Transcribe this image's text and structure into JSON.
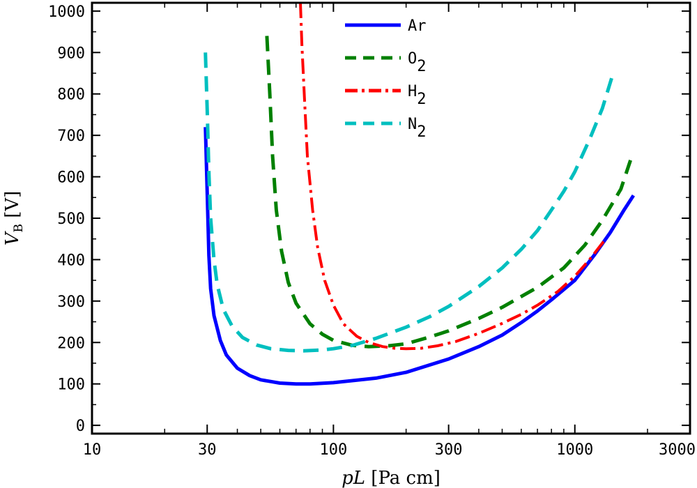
{
  "chart_data": {
    "type": "line",
    "xlabel": {
      "italic": "pL",
      "unit": " [Pa cm]"
    },
    "ylabel": {
      "italic": "V",
      "subscript": "B",
      "unit": " [V]"
    },
    "x_scale": "log",
    "xlim": [
      10,
      3000
    ],
    "ylim": [
      -20,
      1020
    ],
    "x_ticks": [
      10,
      30,
      100,
      300,
      1000,
      3000
    ],
    "x_tick_labels": [
      "10",
      "30",
      "100",
      "300",
      "1000",
      "3000"
    ],
    "y_ticks": [
      0,
      100,
      200,
      300,
      400,
      500,
      600,
      700,
      800,
      900,
      1000
    ],
    "y_tick_labels": [
      "0",
      "100",
      "200",
      "300",
      "400",
      "500",
      "600",
      "700",
      "800",
      "900",
      "1000"
    ],
    "grid": false,
    "legend_position": "top-center",
    "series": [
      {
        "name": "Ar",
        "sub": "",
        "color": "#0000ff",
        "style": "solid",
        "points": [
          [
            29.5,
            720
          ],
          [
            30,
            560
          ],
          [
            30.5,
            410
          ],
          [
            31,
            330
          ],
          [
            32,
            265
          ],
          [
            34,
            205
          ],
          [
            36,
            170
          ],
          [
            40,
            138
          ],
          [
            45,
            120
          ],
          [
            50,
            110
          ],
          [
            60,
            102
          ],
          [
            70,
            100
          ],
          [
            80,
            100
          ],
          [
            100,
            103
          ],
          [
            150,
            114
          ],
          [
            200,
            128
          ],
          [
            300,
            160
          ],
          [
            400,
            190
          ],
          [
            500,
            218
          ],
          [
            600,
            248
          ],
          [
            700,
            276
          ],
          [
            800,
            303
          ],
          [
            1000,
            350
          ],
          [
            1200,
            410
          ],
          [
            1400,
            465
          ],
          [
            1600,
            520
          ],
          [
            1750,
            555
          ]
        ]
      },
      {
        "name": "O",
        "sub": "2",
        "color": "#008000",
        "style": "dashed",
        "points": [
          [
            53,
            940
          ],
          [
            54.5,
            800
          ],
          [
            56,
            650
          ],
          [
            58,
            520
          ],
          [
            61,
            420
          ],
          [
            65,
            345
          ],
          [
            70,
            295
          ],
          [
            80,
            245
          ],
          [
            90,
            220
          ],
          [
            100,
            205
          ],
          [
            120,
            193
          ],
          [
            140,
            190
          ],
          [
            170,
            192
          ],
          [
            200,
            197
          ],
          [
            250,
            213
          ],
          [
            300,
            228
          ],
          [
            400,
            258
          ],
          [
            500,
            285
          ],
          [
            700,
            333
          ],
          [
            900,
            380
          ],
          [
            1100,
            435
          ],
          [
            1300,
            495
          ],
          [
            1550,
            570
          ],
          [
            1700,
            640
          ]
        ]
      },
      {
        "name": "H",
        "sub": "2",
        "color": "#ff0000",
        "style": "dashdot",
        "points": [
          [
            73,
            1020
          ],
          [
            74,
            920
          ],
          [
            76,
            780
          ],
          [
            78,
            650
          ],
          [
            82,
            520
          ],
          [
            86,
            430
          ],
          [
            92,
            350
          ],
          [
            100,
            290
          ],
          [
            110,
            245
          ],
          [
            125,
            215
          ],
          [
            140,
            200
          ],
          [
            160,
            190
          ],
          [
            180,
            186
          ],
          [
            200,
            185
          ],
          [
            230,
            186
          ],
          [
            270,
            192
          ],
          [
            320,
            202
          ],
          [
            400,
            222
          ],
          [
            500,
            246
          ],
          [
            600,
            268
          ],
          [
            700,
            290
          ],
          [
            850,
            323
          ],
          [
            1000,
            360
          ],
          [
            1150,
            400
          ],
          [
            1350,
            452
          ]
        ]
      },
      {
        "name": "N",
        "sub": "2",
        "color": "#00bfbf",
        "style": "dashed",
        "points": [
          [
            29.5,
            900
          ],
          [
            30,
            760
          ],
          [
            30.5,
            610
          ],
          [
            31,
            500
          ],
          [
            32,
            400
          ],
          [
            33,
            340
          ],
          [
            35,
            280
          ],
          [
            38,
            240
          ],
          [
            42,
            212
          ],
          [
            48,
            194
          ],
          [
            55,
            185
          ],
          [
            65,
            181
          ],
          [
            75,
            180
          ],
          [
            90,
            182
          ],
          [
            100,
            185
          ],
          [
            120,
            193
          ],
          [
            150,
            210
          ],
          [
            200,
            237
          ],
          [
            250,
            262
          ],
          [
            300,
            287
          ],
          [
            400,
            335
          ],
          [
            500,
            380
          ],
          [
            600,
            425
          ],
          [
            700,
            470
          ],
          [
            800,
            520
          ],
          [
            900,
            565
          ],
          [
            1000,
            612
          ],
          [
            1150,
            690
          ],
          [
            1300,
            765
          ],
          [
            1420,
            838
          ]
        ]
      }
    ]
  }
}
